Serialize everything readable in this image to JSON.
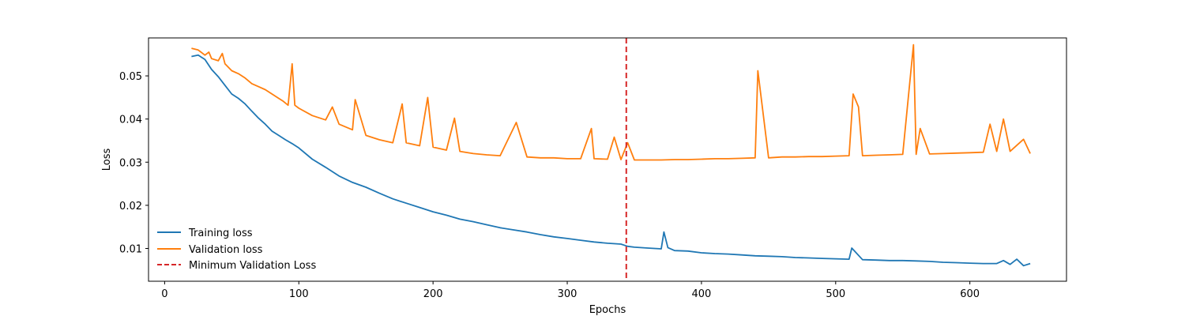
{
  "chart_data": {
    "type": "line",
    "title": "",
    "xlabel": "Epochs",
    "ylabel": "Loss",
    "xlim": [
      -12,
      672
    ],
    "ylim": [
      0.0024,
      0.0588
    ],
    "x_ticks": [
      0,
      100,
      200,
      300,
      400,
      500,
      600
    ],
    "y_ticks": [
      0.01,
      0.02,
      0.03,
      0.04,
      0.05
    ],
    "grid": false,
    "legend_position": "lower-left",
    "series": [
      {
        "name": "Training loss",
        "color": "#1f77b4",
        "style": "solid",
        "x": [
          20,
          25,
          30,
          35,
          40,
          45,
          50,
          55,
          60,
          65,
          70,
          75,
          80,
          85,
          90,
          95,
          100,
          110,
          120,
          130,
          140,
          150,
          160,
          170,
          180,
          190,
          200,
          210,
          220,
          230,
          240,
          250,
          260,
          270,
          280,
          290,
          300,
          310,
          320,
          330,
          340,
          345,
          350,
          360,
          370,
          372,
          375,
          380,
          390,
          400,
          410,
          420,
          430,
          440,
          450,
          460,
          470,
          480,
          490,
          500,
          510,
          512,
          520,
          530,
          540,
          550,
          560,
          570,
          580,
          590,
          600,
          610,
          620,
          625,
          630,
          635,
          640,
          645
        ],
        "y": [
          0.0545,
          0.0548,
          0.0538,
          0.0515,
          0.0498,
          0.0478,
          0.0458,
          0.0448,
          0.0435,
          0.0418,
          0.0402,
          0.0388,
          0.0372,
          0.0362,
          0.0352,
          0.0343,
          0.0333,
          0.0307,
          0.0288,
          0.0268,
          0.0253,
          0.0242,
          0.0228,
          0.0215,
          0.0205,
          0.0195,
          0.0185,
          0.0177,
          0.0168,
          0.0162,
          0.0155,
          0.0148,
          0.0143,
          0.0138,
          0.0132,
          0.0127,
          0.0123,
          0.0119,
          0.0115,
          0.0112,
          0.011,
          0.0105,
          0.0103,
          0.0101,
          0.0099,
          0.0138,
          0.0102,
          0.0095,
          0.0094,
          0.009,
          0.0088,
          0.0087,
          0.0085,
          0.0083,
          0.0082,
          0.0081,
          0.0079,
          0.0078,
          0.0077,
          0.0076,
          0.0075,
          0.0101,
          0.0074,
          0.0073,
          0.0072,
          0.0072,
          0.0071,
          0.007,
          0.0068,
          0.0067,
          0.0066,
          0.0065,
          0.0065,
          0.0072,
          0.0063,
          0.0075,
          0.006,
          0.0065
        ]
      },
      {
        "name": "Validation loss",
        "color": "#ff7f0e",
        "style": "solid",
        "x": [
          20,
          25,
          30,
          33,
          35,
          40,
          43,
          45,
          50,
          55,
          60,
          65,
          70,
          75,
          80,
          85,
          88,
          92,
          95,
          97,
          100,
          110,
          120,
          125,
          130,
          140,
          142,
          150,
          160,
          170,
          177,
          180,
          190,
          196,
          200,
          210,
          216,
          220,
          230,
          240,
          250,
          262,
          270,
          280,
          290,
          300,
          310,
          318,
          320,
          330,
          335,
          340,
          345,
          350,
          360,
          370,
          380,
          390,
          400,
          410,
          420,
          430,
          440,
          442,
          450,
          460,
          470,
          480,
          490,
          500,
          510,
          513,
          517,
          520,
          530,
          540,
          550,
          558,
          560,
          563,
          570,
          580,
          590,
          600,
          610,
          615,
          620,
          625,
          630,
          640,
          645
        ],
        "y": [
          0.0564,
          0.056,
          0.0548,
          0.0555,
          0.054,
          0.0535,
          0.0552,
          0.0528,
          0.0512,
          0.0505,
          0.0495,
          0.0482,
          0.0475,
          0.0468,
          0.0458,
          0.0448,
          0.0442,
          0.0432,
          0.0528,
          0.0432,
          0.0425,
          0.0408,
          0.0398,
          0.0428,
          0.0388,
          0.0375,
          0.0445,
          0.0362,
          0.0352,
          0.0345,
          0.0435,
          0.0345,
          0.0338,
          0.045,
          0.0335,
          0.0328,
          0.0402,
          0.0325,
          0.032,
          0.0317,
          0.0315,
          0.0392,
          0.0312,
          0.031,
          0.031,
          0.0308,
          0.0308,
          0.0378,
          0.0308,
          0.0307,
          0.0358,
          0.0306,
          0.0345,
          0.0305,
          0.0305,
          0.0305,
          0.0306,
          0.0306,
          0.0307,
          0.0308,
          0.0308,
          0.0309,
          0.031,
          0.0512,
          0.031,
          0.0312,
          0.0312,
          0.0313,
          0.0313,
          0.0314,
          0.0315,
          0.0458,
          0.0428,
          0.0315,
          0.0316,
          0.0317,
          0.0318,
          0.0572,
          0.0318,
          0.0378,
          0.0319,
          0.032,
          0.0321,
          0.0322,
          0.0323,
          0.0388,
          0.0325,
          0.04,
          0.0325,
          0.0353,
          0.032
        ]
      }
    ],
    "reference_lines": [
      {
        "name": "Minimum Validation Loss",
        "orientation": "vertical",
        "x": 344,
        "color": "#d62728",
        "style": "dashed"
      }
    ]
  }
}
